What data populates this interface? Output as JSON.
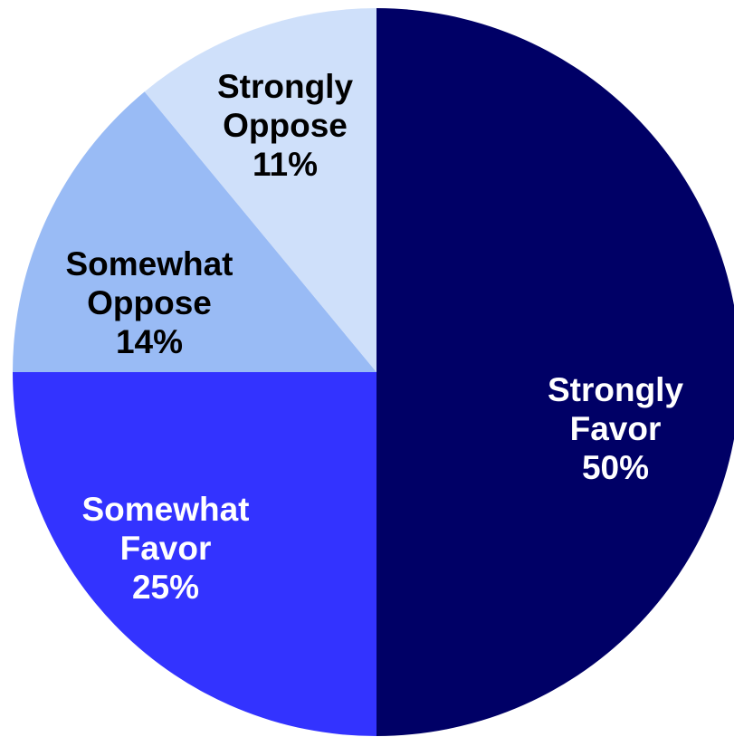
{
  "chart_data": {
    "type": "pie",
    "start": "top",
    "direction": "clockwise",
    "slices": [
      {
        "label_lines": [
          "Strongly",
          "Favor"
        ],
        "value": 50,
        "value_label": "50%",
        "color": "#000066",
        "label_color": "#ffffff"
      },
      {
        "label_lines": [
          "Somewhat",
          "Favor"
        ],
        "value": 25,
        "value_label": "25%",
        "color": "#3333ff",
        "label_color": "#ffffff"
      },
      {
        "label_lines": [
          "Somewhat",
          "Oppose"
        ],
        "value": 14,
        "value_label": "14%",
        "color": "#99bbf5",
        "label_color": "#000000"
      },
      {
        "label_lines": [
          "Strongly",
          "Oppose"
        ],
        "value": 11,
        "value_label": "11%",
        "color": "#cfe0fa",
        "label_color": "#000000"
      }
    ]
  }
}
